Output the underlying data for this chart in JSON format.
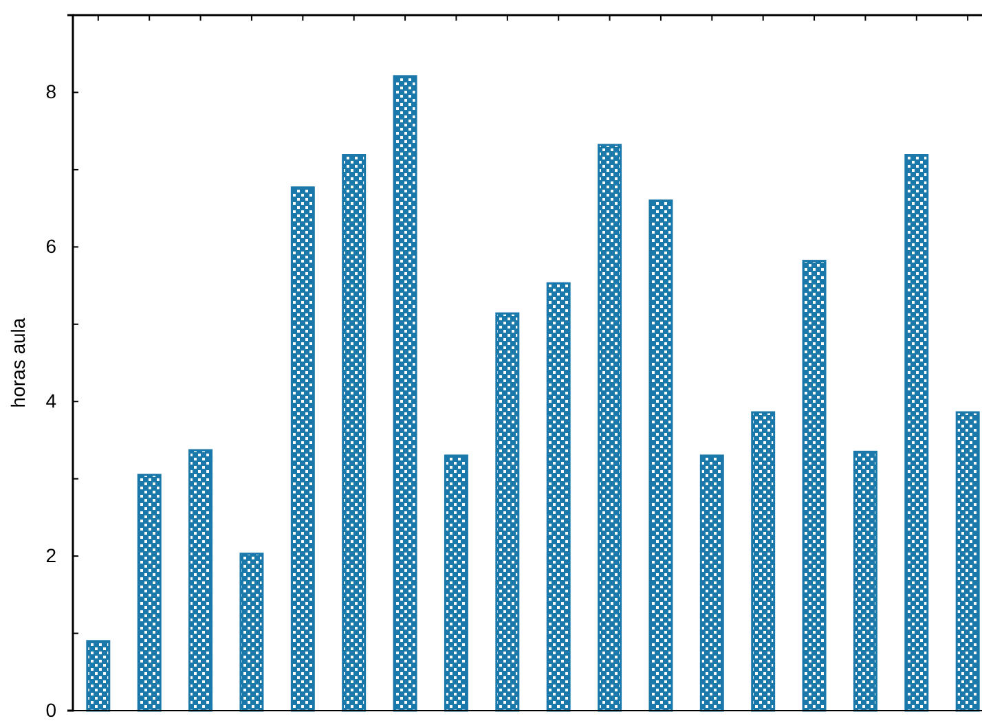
{
  "chart_data": {
    "type": "bar",
    "ylabel": "horas aula",
    "categories": [
      null,
      null,
      null,
      null,
      null,
      null,
      null,
      null,
      null,
      null,
      null,
      null,
      null,
      null,
      null,
      null,
      null,
      null
    ],
    "values": [
      0.9,
      3.05,
      3.37,
      2.03,
      6.77,
      7.19,
      8.21,
      3.3,
      5.14,
      5.53,
      7.32,
      6.6,
      3.3,
      3.86,
      5.82,
      3.35,
      7.19,
      3.86
    ],
    "color": "#1b78aa",
    "ylim": [
      0,
      9
    ],
    "yticks": [
      0,
      {
        "value": 1,
        "label": null
      },
      2,
      {
        "value": 3,
        "label": null
      },
      4,
      {
        "value": 5,
        "label": null
      },
      6,
      {
        "value": 7,
        "label": null
      },
      8
    ],
    "grid": false
  }
}
